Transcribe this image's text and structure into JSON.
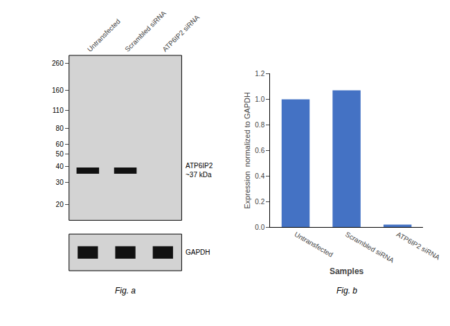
{
  "chart_data": [
    {
      "type": "blot",
      "categories": [
        "Untransfected",
        "Scrambled siRNA",
        "ATP6IP2 siRNA"
      ],
      "series": [
        {
          "name": "ATP6IP2\n~37 kDa",
          "values": [
            37,
            37,
            null
          ]
        }
      ],
      "log": "y",
      "ylim": [
        15,
        300
      ],
      "yticks": [
        260,
        160,
        110,
        80,
        60,
        50,
        40,
        30,
        20
      ],
      "annotations": [
        "GAPDH"
      ],
      "xlabel": "Fig. a",
      "grid": false
    },
    {
      "type": "bar",
      "categories": [
        "Untransfected",
        "Scrambled siRNA",
        "ATP6IP2 siRNA"
      ],
      "values": [
        1.0,
        1.07,
        0.02
      ],
      "color": "#4472c4",
      "xlabel": "Samples",
      "ylabel": "Expression  normalized to GAPDH",
      "ylim": [
        0,
        1.2
      ],
      "yticks": [
        {
          "value": 0,
          "label": "0.0"
        },
        0.2,
        0.4,
        0.6,
        0.8,
        {
          "value": 1.0,
          "label": "1.0"
        },
        1.2
      ],
      "annotations": [
        "Fig. b"
      ],
      "grid": false
    }
  ]
}
